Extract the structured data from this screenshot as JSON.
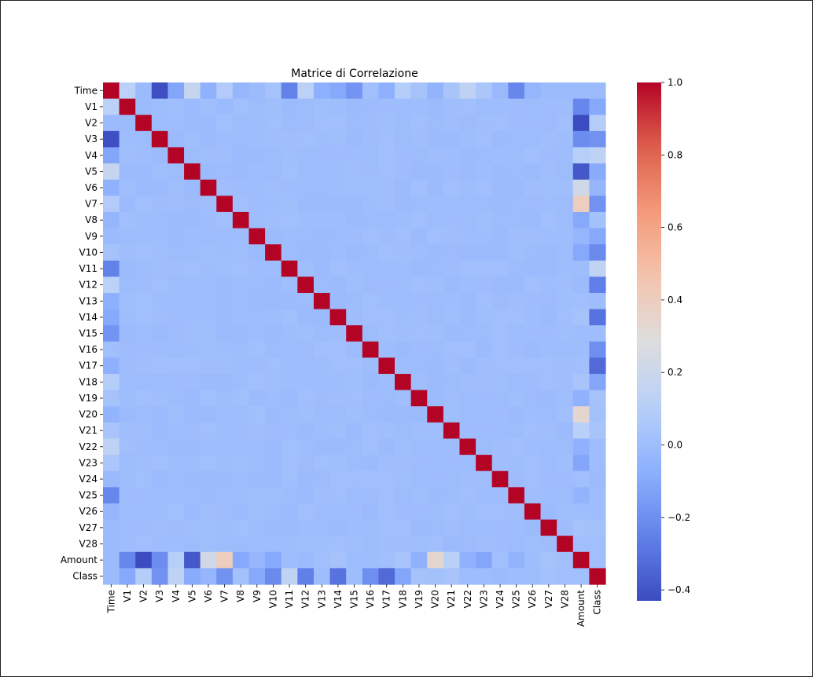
{
  "chart_data": {
    "type": "heatmap",
    "title": "Matrice di Correlazione",
    "colormap": "coolwarm",
    "labels": [
      "Time",
      "V1",
      "V2",
      "V3",
      "V4",
      "V5",
      "V6",
      "V7",
      "V8",
      "V9",
      "V10",
      "V11",
      "V12",
      "V13",
      "V14",
      "V15",
      "V16",
      "V17",
      "V18",
      "V19",
      "V20",
      "V21",
      "V22",
      "V23",
      "V24",
      "V25",
      "V26",
      "V27",
      "V28",
      "Amount",
      "Class"
    ],
    "time_correlations": [
      1.0,
      0.12,
      -0.01,
      -0.42,
      -0.11,
      0.17,
      -0.06,
      0.08,
      -0.04,
      -0.01,
      0.03,
      -0.25,
      0.12,
      -0.07,
      -0.1,
      -0.18,
      0.01,
      -0.07,
      0.09,
      0.03,
      -0.05,
      0.04,
      0.14,
      0.05,
      -0.02,
      -0.23,
      -0.04,
      -0.01,
      -0.01,
      -0.01,
      -0.01
    ],
    "amount_correlations": [
      -0.01,
      -0.23,
      -0.53,
      -0.21,
      0.1,
      -0.39,
      0.22,
      0.4,
      -0.1,
      -0.04,
      -0.1,
      0.0,
      -0.01,
      0.01,
      0.03,
      -0.0,
      -0.0,
      0.01,
      0.04,
      -0.06,
      0.34,
      0.11,
      -0.06,
      -0.11,
      0.01,
      -0.05,
      -0.0,
      0.03,
      0.01,
      1.0,
      0.01
    ],
    "class_correlations": [
      -0.01,
      -0.1,
      0.09,
      -0.19,
      0.13,
      -0.09,
      -0.04,
      -0.19,
      0.02,
      -0.1,
      -0.22,
      0.15,
      -0.26,
      -0.0,
      -0.3,
      -0.0,
      -0.2,
      -0.33,
      -0.11,
      0.03,
      0.02,
      0.04,
      0.0,
      -0.0,
      -0.01,
      0.0,
      0.0,
      0.02,
      0.01,
      0.01,
      1.0
    ],
    "colorbar": {
      "min": -0.43,
      "max": 1.0,
      "ticks": [
        1.0,
        0.8,
        0.6,
        0.4,
        0.2,
        0.0,
        -0.2,
        -0.4
      ],
      "tick_labels": [
        "1.0",
        "0.8",
        "0.6",
        "0.4",
        "0.2",
        "0.0",
        "−0.2",
        "−0.4"
      ]
    }
  }
}
